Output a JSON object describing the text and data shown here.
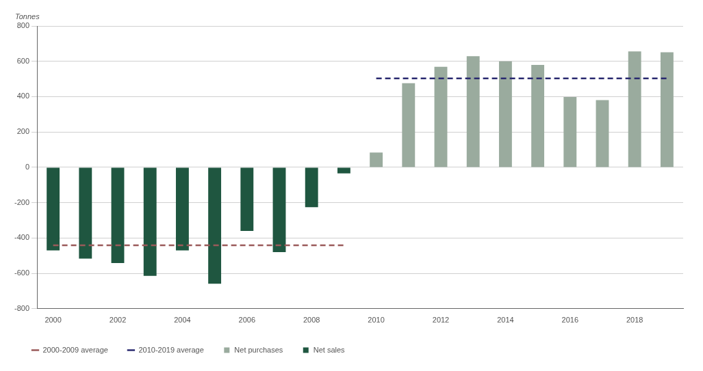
{
  "chart_data": {
    "type": "bar",
    "ylabel": "Tonnes",
    "categories": [
      "2000",
      null,
      "2002",
      null,
      "2004",
      null,
      "2006",
      null,
      "2008",
      null,
      "2010",
      null,
      "2012",
      null,
      "2014",
      null,
      "2016",
      null,
      "2018",
      null
    ],
    "series": [
      {
        "name": "Net purchases",
        "color": "#9aab9e",
        "values": [
          null,
          null,
          null,
          null,
          null,
          null,
          null,
          null,
          null,
          null,
          84,
          476,
          569,
          629,
          600,
          580,
          398,
          380,
          656,
          651
        ]
      },
      {
        "name": "Net sales",
        "color": "#1f5640",
        "values": [
          -470,
          -517,
          -542,
          -614,
          -470,
          -659,
          -360,
          -480,
          -226,
          -34,
          null,
          null,
          null,
          null,
          null,
          null,
          null,
          null,
          null,
          null
        ]
      },
      {
        "name": "2000-2009 average",
        "type": "line",
        "line_style": "dashed",
        "marker": "none",
        "color": "#9a5a5a",
        "values": [
          -441,
          -441,
          -441,
          -441,
          -441,
          -441,
          -441,
          -441,
          -441,
          -441,
          null,
          null,
          null,
          null,
          null,
          null,
          null,
          null,
          null,
          null
        ]
      },
      {
        "name": "2010-2019 average",
        "type": "line",
        "line_style": "dashed",
        "marker": "none",
        "color": "#2a2a70",
        "values": [
          null,
          null,
          null,
          null,
          null,
          null,
          null,
          null,
          null,
          null,
          503,
          503,
          503,
          503,
          503,
          503,
          503,
          503,
          503,
          503
        ]
      }
    ],
    "ylim": [
      -800,
      800
    ],
    "yticks": [
      -800,
      -600,
      -400,
      -200,
      0,
      200,
      400,
      600,
      800
    ],
    "grid": "y",
    "legend": "bottom left"
  }
}
